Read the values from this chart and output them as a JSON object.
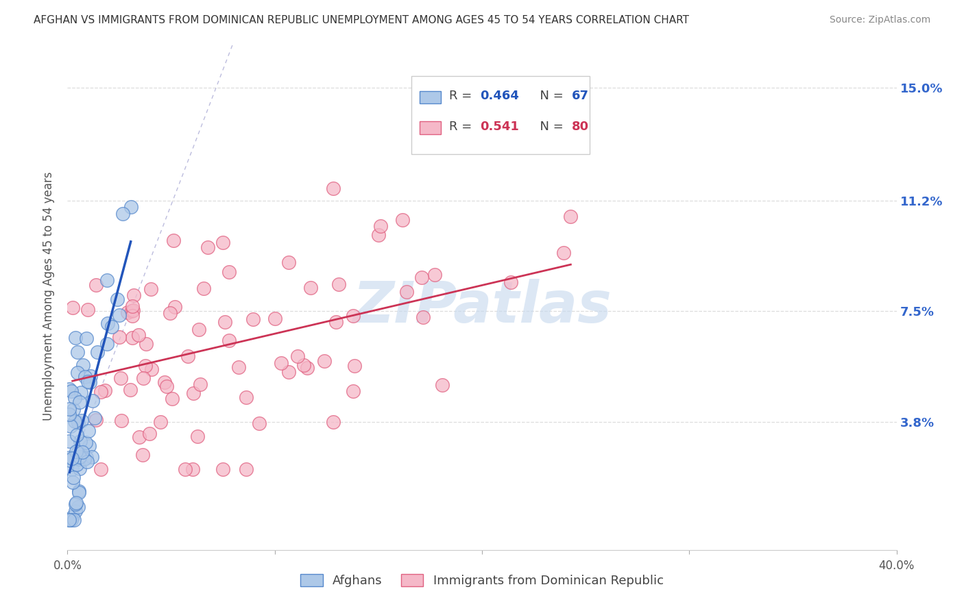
{
  "title": "AFGHAN VS IMMIGRANTS FROM DOMINICAN REPUBLIC UNEMPLOYMENT AMONG AGES 45 TO 54 YEARS CORRELATION CHART",
  "source": "Source: ZipAtlas.com",
  "ylabel": "Unemployment Among Ages 45 to 54 years",
  "xlim": [
    0.0,
    0.4
  ],
  "ylim": [
    -0.005,
    0.165
  ],
  "ytick_values": [
    0.038,
    0.075,
    0.112,
    0.15
  ],
  "ytick_labels": [
    "3.8%",
    "7.5%",
    "11.2%",
    "15.0%"
  ],
  "afghans_fill": "#adc8e8",
  "afghans_edge": "#5588cc",
  "dr_fill": "#f5b8c8",
  "dr_edge": "#e06080",
  "afghans_line_color": "#2255bb",
  "dr_line_color": "#cc3355",
  "ref_line_color": "#9999cc",
  "watermark": "ZIPatlas",
  "watermark_color": "#c5d8ee",
  "background_color": "#ffffff",
  "grid_color": "#dddddd",
  "right_tick_color": "#3366cc",
  "title_color": "#333333",
  "source_color": "#888888",
  "legend_border_color": "#cccccc",
  "legend_blue_R": "0.464",
  "legend_blue_N": "67",
  "legend_pink_R": "0.541",
  "legend_pink_N": "80",
  "bottom_legend_labels": [
    "Afghans",
    "Immigrants from Dominican Republic"
  ]
}
